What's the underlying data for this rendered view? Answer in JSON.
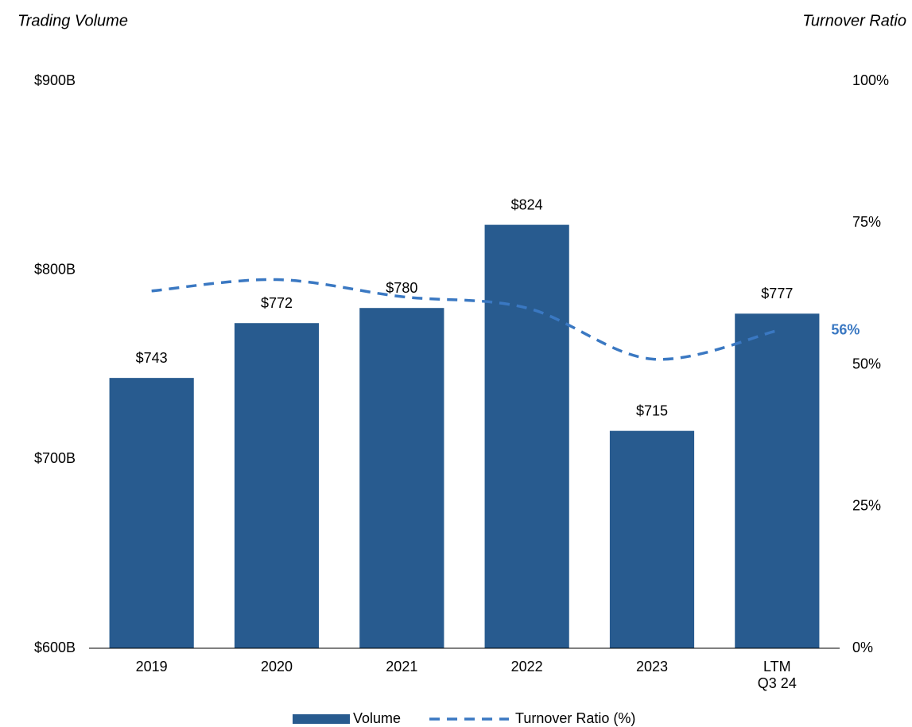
{
  "chart_data": {
    "type": "bar_line",
    "y_title": "Trading Volume",
    "y2_title": "Turnover Ratio",
    "categories": [
      [
        "2019"
      ],
      [
        "2020"
      ],
      [
        "2021"
      ],
      [
        "2022"
      ],
      [
        "2023"
      ],
      [
        "LTM",
        "Q3 24"
      ]
    ],
    "series": [
      {
        "name": "Volume",
        "type": "bar",
        "color": "#285b8f",
        "axis": "y",
        "values": [
          743,
          772,
          780,
          824,
          715,
          777
        ],
        "value_labels": [
          "$743",
          "$772",
          "$780",
          "$824",
          "$715",
          "$777"
        ]
      },
      {
        "name": "Turnover Ratio (%)",
        "type": "line",
        "color": "#3a78c2",
        "axis": "y2",
        "dashed": true,
        "smooth": true,
        "values": [
          63,
          65,
          62,
          60,
          51,
          56
        ],
        "value_labels": [
          null,
          null,
          null,
          null,
          null,
          "56%"
        ]
      }
    ],
    "ylim": [
      600,
      900
    ],
    "yticks": [
      {
        "value": 600,
        "label": "$600B"
      },
      {
        "value": 700,
        "label": "$700B"
      },
      {
        "value": 800,
        "label": "$800B"
      },
      {
        "value": 900,
        "label": "$900B"
      }
    ],
    "y2lim": [
      0,
      100
    ],
    "y2ticks": [
      {
        "value": 0,
        "label": "0%"
      },
      {
        "value": 25,
        "label": "25%"
      },
      {
        "value": 50,
        "label": "50%"
      },
      {
        "value": 75,
        "label": "75%"
      },
      {
        "value": 100,
        "label": "100%"
      }
    ],
    "legend": "bottom",
    "grid": false
  }
}
